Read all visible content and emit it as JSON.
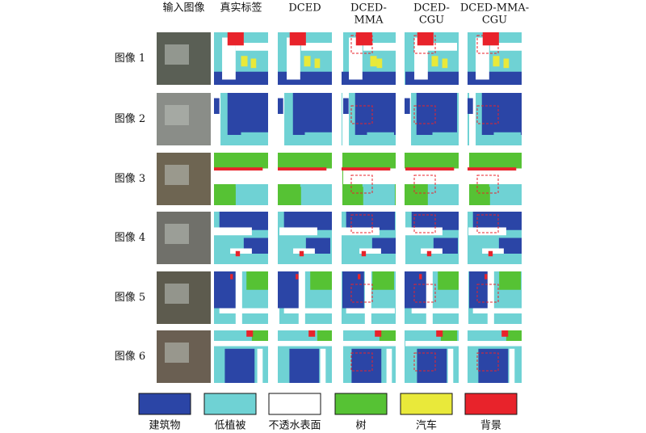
{
  "figure": {
    "column_headers": [
      [
        "输入图像"
      ],
      [
        "真实标签"
      ],
      [
        "DCED"
      ],
      [
        "DCED-",
        "MMA"
      ],
      [
        "DCED-",
        "CGU"
      ],
      [
        "DCED-MMA-",
        "CGU"
      ]
    ],
    "row_labels": [
      "图像 1",
      "图像 2",
      "图像 3",
      "图像 4",
      "图像 5",
      "图像 6"
    ],
    "legend": [
      {
        "label": "建筑物",
        "color": "#2b45a6"
      },
      {
        "label": "低植被",
        "color": "#6fd2d4"
      },
      {
        "label": "不透水表面",
        "color": "#ffffff"
      },
      {
        "label": "树",
        "color": "#56c234"
      },
      {
        "label": "汽车",
        "color": "#e9e93a"
      },
      {
        "label": "背景",
        "color": "#e8232b"
      }
    ]
  }
}
